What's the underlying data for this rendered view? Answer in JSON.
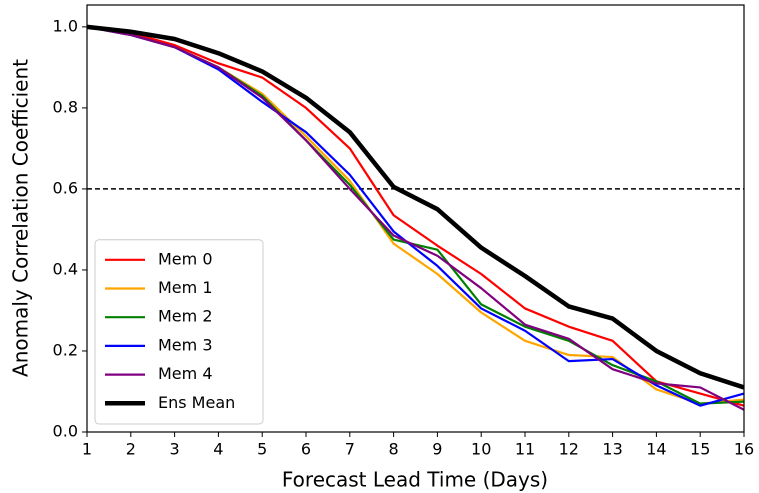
{
  "chart_data": {
    "type": "line",
    "x_label": "Forecast Lead Time (Days)",
    "y_label": "Anomaly Correlation Coefficient",
    "x": [
      1,
      2,
      3,
      4,
      5,
      6,
      7,
      8,
      9,
      10,
      11,
      12,
      13,
      14,
      15,
      16
    ],
    "xlim": [
      1,
      16
    ],
    "xticks": [
      1,
      2,
      3,
      4,
      5,
      6,
      7,
      8,
      9,
      10,
      11,
      12,
      13,
      14,
      15,
      16
    ],
    "ylim": [
      0,
      1.054
    ],
    "yticks": [
      {
        "value": 0,
        "label": "0.0"
      },
      0.2,
      0.4,
      0.6,
      0.8,
      {
        "value": 1,
        "label": "1.0"
      }
    ],
    "reference_line": 0.6,
    "legend": "lower left",
    "series": [
      {
        "name": "Mem 0",
        "color": "#ff0000",
        "values": [
          1.0,
          0.985,
          0.955,
          0.91,
          0.875,
          0.8,
          0.7,
          0.535,
          0.46,
          0.39,
          0.305,
          0.26,
          0.225,
          0.125,
          0.095,
          0.065
        ]
      },
      {
        "name": "Mem 1",
        "color": "#ffa500",
        "values": [
          1.0,
          0.98,
          0.95,
          0.9,
          0.835,
          0.73,
          0.62,
          0.465,
          0.39,
          0.295,
          0.225,
          0.19,
          0.185,
          0.105,
          0.07,
          0.08
        ]
      },
      {
        "name": "Mem 2",
        "color": "#008000",
        "values": [
          1.0,
          0.98,
          0.95,
          0.9,
          0.83,
          0.72,
          0.61,
          0.475,
          0.45,
          0.315,
          0.26,
          0.225,
          0.165,
          0.125,
          0.07,
          0.075
        ]
      },
      {
        "name": "Mem 3",
        "color": "#0000ff",
        "values": [
          1.0,
          0.98,
          0.95,
          0.895,
          0.815,
          0.74,
          0.635,
          0.495,
          0.41,
          0.305,
          0.25,
          0.175,
          0.18,
          0.115,
          0.065,
          0.095
        ]
      },
      {
        "name": "Mem 4",
        "color": "#800080",
        "values": [
          1.0,
          0.98,
          0.95,
          0.9,
          0.825,
          0.72,
          0.6,
          0.485,
          0.435,
          0.355,
          0.265,
          0.23,
          0.155,
          0.12,
          0.11,
          0.055
        ]
      },
      {
        "name": "Ens Mean",
        "color": "#000000",
        "values": [
          1.0,
          0.988,
          0.97,
          0.935,
          0.89,
          0.825,
          0.74,
          0.605,
          0.55,
          0.455,
          0.385,
          0.31,
          0.28,
          0.2,
          0.145,
          0.11
        ]
      }
    ]
  }
}
